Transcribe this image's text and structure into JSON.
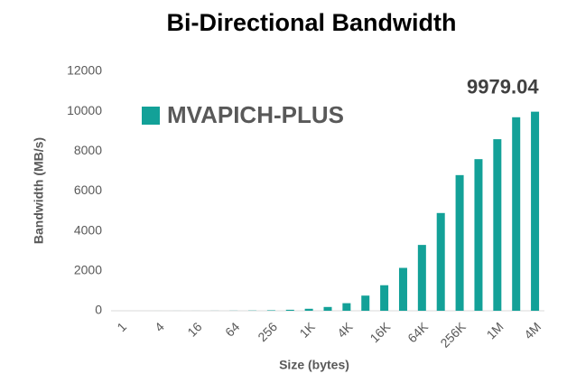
{
  "chart_data": {
    "type": "bar",
    "title": "Bi-Directional Bandwidth",
    "x_label": "Size (bytes)",
    "y_label": "Bandwidth (MB/s)",
    "categories": [
      "1",
      null,
      "4",
      null,
      "16",
      null,
      "64",
      null,
      "256",
      null,
      "1K",
      null,
      "4K",
      null,
      "16K",
      null,
      "64K",
      null,
      "256K",
      null,
      "1M",
      null,
      "4M"
    ],
    "series": [
      {
        "name": "MVAPICH-PLUS",
        "color": "#13a198",
        "values": [
          0.1,
          0.2,
          0.4,
          0.8,
          1.5,
          3,
          6,
          12,
          25,
          50,
          100,
          190,
          380,
          760,
          1280,
          2150,
          3300,
          4900,
          6800,
          7600,
          8600,
          9700,
          9979.04
        ],
        "value_labels": [
          null,
          null,
          null,
          null,
          null,
          null,
          null,
          null,
          null,
          null,
          null,
          null,
          null,
          null,
          null,
          null,
          null,
          null,
          null,
          null,
          null,
          null,
          "9979.04"
        ]
      }
    ],
    "ylim": [
      0,
      12000
    ],
    "yticks": [
      0,
      2000,
      4000,
      6000,
      8000,
      10000,
      12000
    ],
    "grid": false,
    "legend": "upper left"
  }
}
